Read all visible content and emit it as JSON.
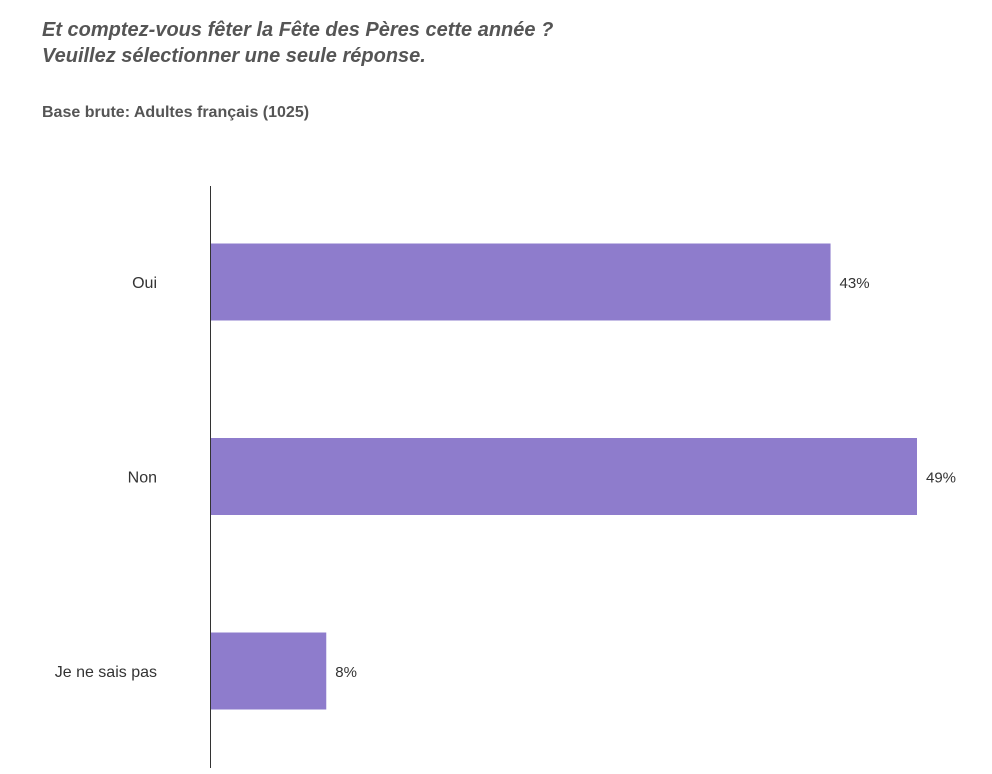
{
  "header": {
    "title_line1": "Et comptez-vous fêter la Fête des Pères cette année ?",
    "title_line2": "Veuillez sélectionner une seule réponse.",
    "base": "Base brute: Adultes français (1025)"
  },
  "chart_data": {
    "type": "bar",
    "orientation": "horizontal",
    "categories": [
      "Oui",
      "Non",
      "Je ne sais pas"
    ],
    "values": [
      43,
      49,
      8
    ],
    "value_labels": [
      "43%",
      "49%",
      "8%"
    ],
    "unit": "%",
    "xlim": [
      0,
      49
    ],
    "grid": false,
    "bar_color": "#8e7ccc",
    "axis_color": "#333333"
  }
}
